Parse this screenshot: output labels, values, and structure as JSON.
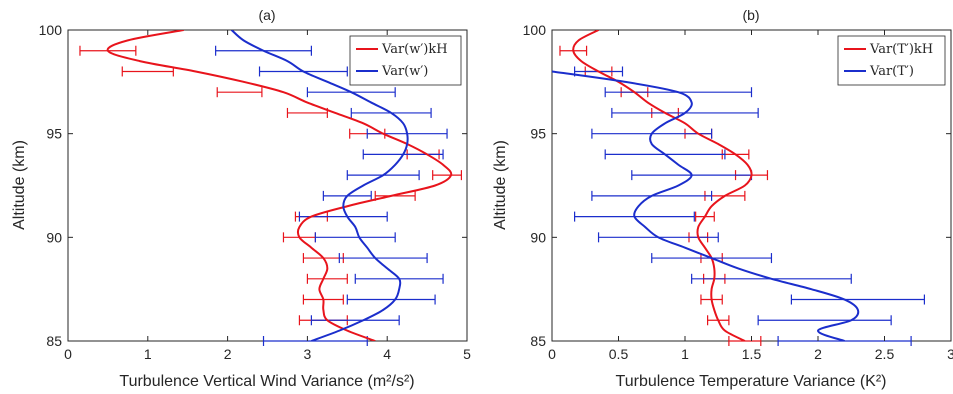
{
  "chart_data": [
    {
      "type": "line",
      "title": "(a)",
      "xlabel": "Turbulence Vertical Wind Variance (m²/s²)",
      "ylabel": "Altitude (km)",
      "xlim": [
        0,
        5
      ],
      "ylim": [
        85,
        100
      ],
      "xticks": [
        "0",
        "1",
        "2",
        "3",
        "4",
        "5"
      ],
      "yticks": [
        "85",
        "90",
        "95",
        "100"
      ],
      "grid": false,
      "legend_position": "top-right",
      "legend_entries": [
        "Var(w′)kH",
        "Var(w′)"
      ],
      "series": [
        {
          "name": "Var(w′)kH",
          "color": "#e8141c",
          "y": [
            100,
            99.5,
            99,
            98.5,
            98,
            97.5,
            97,
            96.5,
            96,
            95.5,
            95,
            94.5,
            94,
            93.5,
            93,
            92.5,
            92,
            91.5,
            91,
            90.5,
            90,
            89.5,
            89,
            88.5,
            88,
            87.5,
            87,
            86.5,
            86,
            85.5,
            85
          ],
          "x": [
            1.45,
            0.75,
            0.5,
            0.9,
            1.6,
            2.2,
            2.7,
            3.0,
            3.35,
            3.7,
            3.95,
            4.25,
            4.5,
            4.7,
            4.8,
            4.6,
            4.05,
            3.5,
            3.05,
            2.9,
            2.9,
            3.05,
            3.2,
            3.25,
            3.2,
            3.15,
            3.2,
            3.2,
            3.25,
            3.5,
            3.85
          ]
        },
        {
          "name": "Var(w′)",
          "color": "#1b2ecc",
          "y": [
            100,
            99.5,
            99,
            98.5,
            98,
            97.5,
            97,
            96.5,
            96,
            95.5,
            95,
            94.5,
            94,
            93.5,
            93,
            92.5,
            92,
            91.5,
            91,
            90.5,
            90,
            89.5,
            89,
            88.5,
            88,
            87.5,
            87,
            86.5,
            86,
            85.5,
            85
          ],
          "x": [
            2.05,
            2.2,
            2.45,
            2.75,
            2.95,
            3.25,
            3.55,
            3.8,
            4.05,
            4.2,
            4.25,
            4.25,
            4.2,
            4.1,
            3.95,
            3.7,
            3.5,
            3.45,
            3.5,
            3.6,
            3.65,
            3.75,
            3.85,
            4.0,
            4.15,
            4.15,
            4.1,
            3.95,
            3.7,
            3.4,
            3.05
          ]
        }
      ],
      "error_bars": [
        {
          "series": "Var(w′)kH",
          "points": [
            {
              "y": 99,
              "x": 0.5,
              "xerr": 0.35
            },
            {
              "y": 98,
              "x": 1.0,
              "xerr": 0.32
            },
            {
              "y": 97,
              "x": 2.15,
              "xerr": 0.28
            },
            {
              "y": 96,
              "x": 3.0,
              "xerr": 0.25
            },
            {
              "y": 95,
              "x": 3.75,
              "xerr": 0.22
            },
            {
              "y": 94,
              "x": 4.45,
              "xerr": 0.2
            },
            {
              "y": 93,
              "x": 4.75,
              "xerr": 0.18
            },
            {
              "y": 92,
              "x": 4.1,
              "xerr": 0.25
            },
            {
              "y": 91,
              "x": 3.05,
              "xerr": 0.2
            },
            {
              "y": 90,
              "x": 2.9,
              "xerr": 0.2
            },
            {
              "y": 89,
              "x": 3.2,
              "xerr": 0.25
            },
            {
              "y": 88,
              "x": 3.25,
              "xerr": 0.25
            },
            {
              "y": 87,
              "x": 3.2,
              "xerr": 0.25
            },
            {
              "y": 86,
              "x": 3.2,
              "xerr": 0.3
            }
          ]
        },
        {
          "series": "Var(w′)",
          "points": [
            {
              "y": 99,
              "x": 2.45,
              "xerr": 0.6
            },
            {
              "y": 98,
              "x": 2.95,
              "xerr": 0.55
            },
            {
              "y": 97,
              "x": 3.55,
              "xerr": 0.55
            },
            {
              "y": 96,
              "x": 4.05,
              "xerr": 0.5
            },
            {
              "y": 95,
              "x": 4.25,
              "xerr": 0.5
            },
            {
              "y": 94,
              "x": 4.2,
              "xerr": 0.5
            },
            {
              "y": 93,
              "x": 3.95,
              "xerr": 0.45
            },
            {
              "y": 92,
              "x": 3.5,
              "xerr": 0.3
            },
            {
              "y": 91,
              "x": 3.45,
              "xerr": 0.55
            },
            {
              "y": 90,
              "x": 3.6,
              "xerr": 0.5
            },
            {
              "y": 89,
              "x": 3.95,
              "xerr": 0.55
            },
            {
              "y": 88,
              "x": 4.15,
              "xerr": 0.55
            },
            {
              "y": 87,
              "x": 4.05,
              "xerr": 0.55
            },
            {
              "y": 86,
              "x": 3.6,
              "xerr": 0.55
            },
            {
              "y": 85,
              "x": 3.1,
              "xerr": 0.65
            }
          ]
        }
      ]
    },
    {
      "type": "line",
      "title": "(b)",
      "xlabel": "Turbulence Temperature Variance (K²)",
      "ylabel": "Altitude (km)",
      "xlim": [
        0,
        3
      ],
      "ylim": [
        85,
        100
      ],
      "xticks": [
        "0",
        "0.5",
        "1",
        "1.5",
        "2",
        "2.5",
        "3"
      ],
      "yticks": [
        "85",
        "90",
        "95",
        "100"
      ],
      "grid": false,
      "legend_position": "top-right",
      "legend_entries": [
        "Var(T′)kH",
        "Var(T′)"
      ],
      "series": [
        {
          "name": "Var(T′)kH",
          "color": "#e8141c",
          "y": [
            100,
            99.5,
            99,
            98.5,
            98,
            97.5,
            97,
            96.5,
            96,
            95.5,
            95,
            94.5,
            94,
            93.5,
            93,
            92.5,
            92,
            91.5,
            91,
            90.5,
            90,
            89.5,
            89,
            88.5,
            88,
            87.5,
            87,
            86.5,
            86,
            85.5,
            85
          ],
          "x": [
            0.35,
            0.2,
            0.16,
            0.22,
            0.35,
            0.5,
            0.62,
            0.72,
            0.85,
            1.0,
            1.1,
            1.25,
            1.38,
            1.47,
            1.5,
            1.45,
            1.3,
            1.2,
            1.15,
            1.1,
            1.1,
            1.15,
            1.2,
            1.22,
            1.22,
            1.2,
            1.2,
            1.22,
            1.25,
            1.3,
            1.45
          ]
        },
        {
          "name": "Var(T′)",
          "color": "#1b2ecc",
          "y": [
            98,
            97.5,
            97,
            96.5,
            96,
            95.5,
            95,
            94.5,
            94,
            93.5,
            93,
            92.5,
            92,
            91.5,
            91,
            90.5,
            90,
            89.5,
            89,
            88.5,
            88,
            87.5,
            87,
            86.5,
            86,
            85.5,
            85
          ],
          "x": [
            0.0,
            0.55,
            0.95,
            1.05,
            1.0,
            0.85,
            0.75,
            0.75,
            0.85,
            0.95,
            1.05,
            0.95,
            0.75,
            0.65,
            0.62,
            0.7,
            0.8,
            1.0,
            1.2,
            1.4,
            1.65,
            1.95,
            2.2,
            2.3,
            2.25,
            2.0,
            2.2
          ]
        }
      ],
      "error_bars": [
        {
          "series": "Var(T′)kH",
          "points": [
            {
              "y": 99,
              "x": 0.16,
              "xerr": 0.1
            },
            {
              "y": 98,
              "x": 0.35,
              "xerr": 0.1
            },
            {
              "y": 97,
              "x": 0.62,
              "xerr": 0.1
            },
            {
              "y": 96,
              "x": 0.85,
              "xerr": 0.1
            },
            {
              "y": 95,
              "x": 1.1,
              "xerr": 0.1
            },
            {
              "y": 94,
              "x": 1.38,
              "xerr": 0.1
            },
            {
              "y": 93,
              "x": 1.5,
              "xerr": 0.12
            },
            {
              "y": 92,
              "x": 1.3,
              "xerr": 0.15
            },
            {
              "y": 91,
              "x": 1.15,
              "xerr": 0.07
            },
            {
              "y": 90,
              "x": 1.1,
              "xerr": 0.07
            },
            {
              "y": 89,
              "x": 1.2,
              "xerr": 0.08
            },
            {
              "y": 88,
              "x": 1.22,
              "xerr": 0.08
            },
            {
              "y": 87,
              "x": 1.2,
              "xerr": 0.08
            },
            {
              "y": 86,
              "x": 1.25,
              "xerr": 0.08
            },
            {
              "y": 85,
              "x": 1.45,
              "xerr": 0.12
            }
          ]
        },
        {
          "series": "Var(T′)",
          "points": [
            {
              "y": 98,
              "x": 0.35,
              "xerr": 0.18
            },
            {
              "y": 97,
              "x": 0.95,
              "xerr": 0.55
            },
            {
              "y": 96,
              "x": 1.0,
              "xerr": 0.55
            },
            {
              "y": 95,
              "x": 0.75,
              "xerr": 0.45
            },
            {
              "y": 94,
              "x": 0.85,
              "xerr": 0.45
            },
            {
              "y": 93,
              "x": 1.05,
              "xerr": 0.45
            },
            {
              "y": 92,
              "x": 0.75,
              "xerr": 0.45
            },
            {
              "y": 91,
              "x": 0.62,
              "xerr": 0.45
            },
            {
              "y": 90,
              "x": 0.8,
              "xerr": 0.45
            },
            {
              "y": 89,
              "x": 1.2,
              "xerr": 0.45
            },
            {
              "y": 88,
              "x": 1.65,
              "xerr": 0.6
            },
            {
              "y": 87,
              "x": 2.3,
              "xerr": 0.5
            },
            {
              "y": 86,
              "x": 2.05,
              "xerr": 0.5
            },
            {
              "y": 85,
              "x": 2.2,
              "xerr": 0.5
            }
          ]
        }
      ]
    }
  ]
}
